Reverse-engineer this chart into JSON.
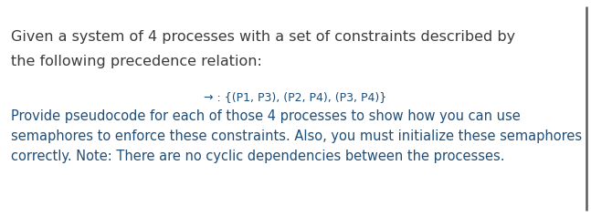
{
  "bg_color": "#ffffff",
  "title_line1": "Given a system of 4 processes with a set of constraints described by",
  "title_line2": "the following precedence relation:",
  "arrow_label": "→ : {(P1, P3), (P2, P4), (P3, P4)}",
  "body_line1": "Provide pseudocode for each of those 4 processes to show how you can use",
  "body_line2": "semaphores to enforce these constraints. Also, you must initialize these semaphores",
  "body_line3": "correctly. Note: There are no cyclic dependencies between the processes.",
  "title_color": "#3c3c3c",
  "arrow_color": "#1f4e79",
  "body_color": "#1f4e79",
  "border_color": "#5a5a5a",
  "title_fontsize": 11.5,
  "arrow_fontsize": 9.0,
  "body_fontsize": 10.5,
  "fig_width": 6.47,
  "fig_height": 2.38
}
